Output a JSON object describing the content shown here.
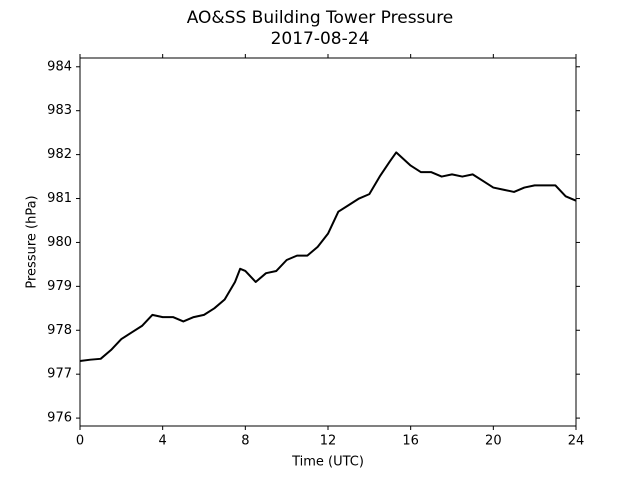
{
  "chart_data": {
    "type": "line",
    "title": "AO&SS Building Tower Pressure",
    "subtitle": "2017-08-24",
    "x_label": "Time (UTC)",
    "y_label": "Pressure (hPa)",
    "x": [
      0,
      0.5,
      1,
      1.5,
      2,
      2.5,
      3,
      3.5,
      4,
      4.5,
      5,
      5.5,
      6,
      6.5,
      7,
      7.5,
      7.75,
      8,
      8.5,
      9,
      9.5,
      10,
      10.5,
      11,
      11.5,
      12,
      12.5,
      13,
      13.5,
      14,
      14.5,
      15,
      15.3,
      16,
      16.5,
      17,
      17.5,
      18,
      18.5,
      19,
      19.5,
      20,
      20.5,
      21,
      21.5,
      22,
      22.5,
      23,
      23.5,
      24
    ],
    "series": [
      {
        "name": "Pressure",
        "color": "#000000",
        "values": [
          977.3,
          977.33,
          977.35,
          977.55,
          977.8,
          977.95,
          978.1,
          978.35,
          978.3,
          978.3,
          978.2,
          978.3,
          978.35,
          978.5,
          978.7,
          979.1,
          979.4,
          979.35,
          979.1,
          979.3,
          979.35,
          979.6,
          979.7,
          979.7,
          979.9,
          980.2,
          980.7,
          980.85,
          981.0,
          981.1,
          981.5,
          981.85,
          982.05,
          981.75,
          981.6,
          981.6,
          981.5,
          981.55,
          981.5,
          981.55,
          981.4,
          981.25,
          981.2,
          981.15,
          981.25,
          981.3,
          981.3,
          981.3,
          981.05,
          980.95
        ]
      }
    ],
    "xlim": [
      0,
      24
    ],
    "xticks": [
      0,
      4,
      8,
      12,
      16,
      20,
      24
    ],
    "ylim": [
      975.82,
      984.2
    ],
    "yticks": [
      976,
      977,
      978,
      979,
      980,
      981,
      982,
      983,
      984
    ],
    "grid": false
  }
}
